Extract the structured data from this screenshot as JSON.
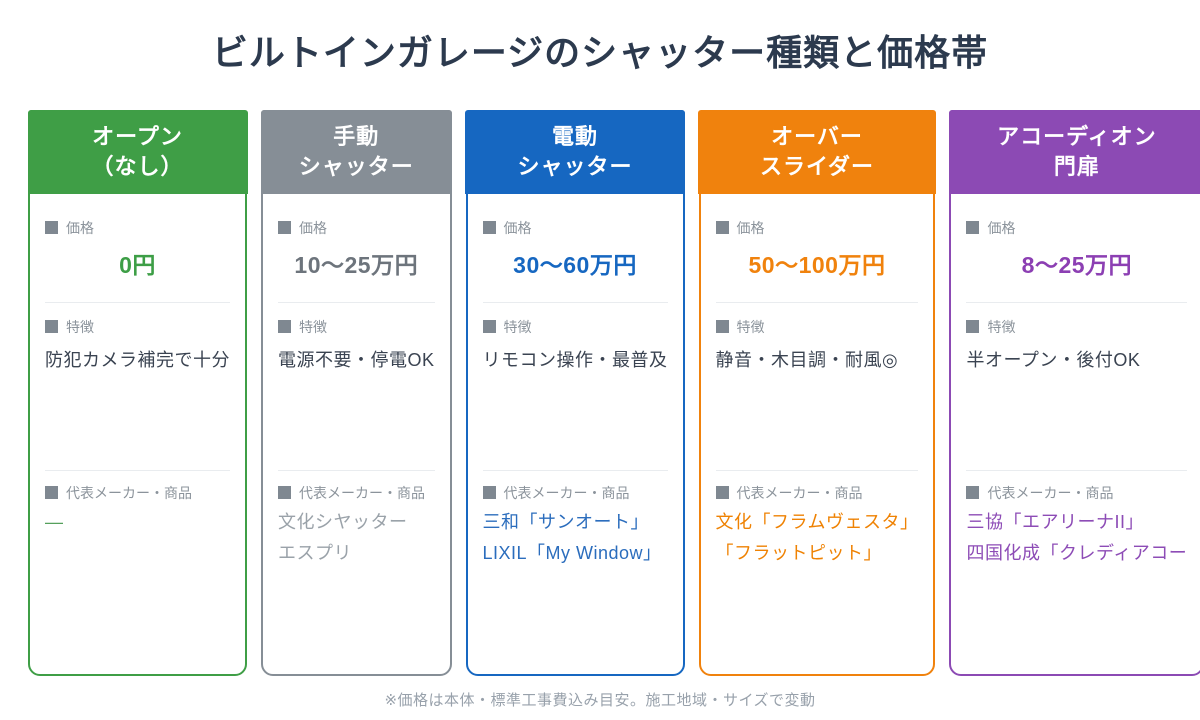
{
  "title": "ビルトインガレージのシャッター種類と価格帯",
  "footer_note": "※価格は本体・標準工事費込み目安。施工地域・サイズで変動",
  "labels": {
    "price": "価格",
    "features": "特徴",
    "maker": "代表メーカー・商品"
  },
  "columns": [
    {
      "header_line1": "オープン",
      "header_line2": "（なし）",
      "color": "#3f9e46",
      "price_color": "#3d9e46",
      "product_color": "#55a05c",
      "price": "0円",
      "features": "防犯カメラ補完で十分",
      "product_line1": "—",
      "product_line2": ""
    },
    {
      "header_line1": "手動",
      "header_line2": "シャッター",
      "color": "#868e96",
      "price_color": "#6d747c",
      "product_color": "#9aa2a9",
      "price": "10〜25万円",
      "features": "電源不要・停電OK",
      "product_line1": "文化シヤッター",
      "product_line2": "エスプリ"
    },
    {
      "header_line1": "電動",
      "header_line2": "シャッター",
      "color": "#1667c1",
      "price_color": "#1667c1",
      "product_color": "#2b6dbd",
      "price": "30〜60万円",
      "features": "リモコン操作・最普及",
      "product_line1": "三和「サンオート」",
      "product_line2": "LIXIL「My Window」"
    },
    {
      "header_line1": "オーバー",
      "header_line2": "スライダー",
      "color": "#f0820d",
      "price_color": "#f0820d",
      "product_color": "#ef8203",
      "price": "50〜100万円",
      "features": "静音・木目調・耐風◎",
      "product_line1": "文化「フラムヴェスタ」",
      "product_line2": "「フラットピット」"
    },
    {
      "header_line1": "アコーディオン",
      "header_line2": "門扉",
      "color": "#8c4ab4",
      "price_color": "#8c3fb3",
      "product_color": "#8d4cb6",
      "price": "8〜25万円",
      "features": "半オープン・後付OK",
      "product_line1": "三協「エアリーナII」",
      "product_line2": "四国化成「クレディアコー"
    }
  ],
  "chart_data": {
    "type": "table",
    "title": "ビルトインガレージのシャッター種類と価格帯",
    "columns": [
      "オープン（なし）",
      "手動シャッター",
      "電動シャッター",
      "オーバースライダー",
      "アコーディオン門扉"
    ],
    "column_colors": [
      "#3f9e46",
      "#868e96",
      "#1667c1",
      "#f0820d",
      "#8c4ab4"
    ],
    "rows": [
      {
        "label": "価格",
        "values": [
          "0円",
          "10〜25万円",
          "30〜60万円",
          "50〜100万円",
          "8〜25万円"
        ],
        "price_range_man_yen": [
          [
            0,
            0
          ],
          [
            10,
            25
          ],
          [
            30,
            60
          ],
          [
            50,
            100
          ],
          [
            8,
            25
          ]
        ]
      },
      {
        "label": "特徴",
        "values": [
          "防犯カメラ補完で十分",
          "電源不要・停電OK",
          "リモコン操作・最普及",
          "静音・木目調・耐風◎",
          "半オープン・後付OK"
        ]
      },
      {
        "label": "代表メーカー・商品",
        "values": [
          "—",
          "文化シヤッター エスプリ",
          "三和「サンオート」 LIXIL「My Window」",
          "文化「フラムヴェスタ」「フラットピット」",
          "三協「エアリーナII」 四国化成「クレディアコー"
        ]
      }
    ],
    "note": "※価格は本体・標準工事費込み目安。施工地域・サイズで変動"
  }
}
